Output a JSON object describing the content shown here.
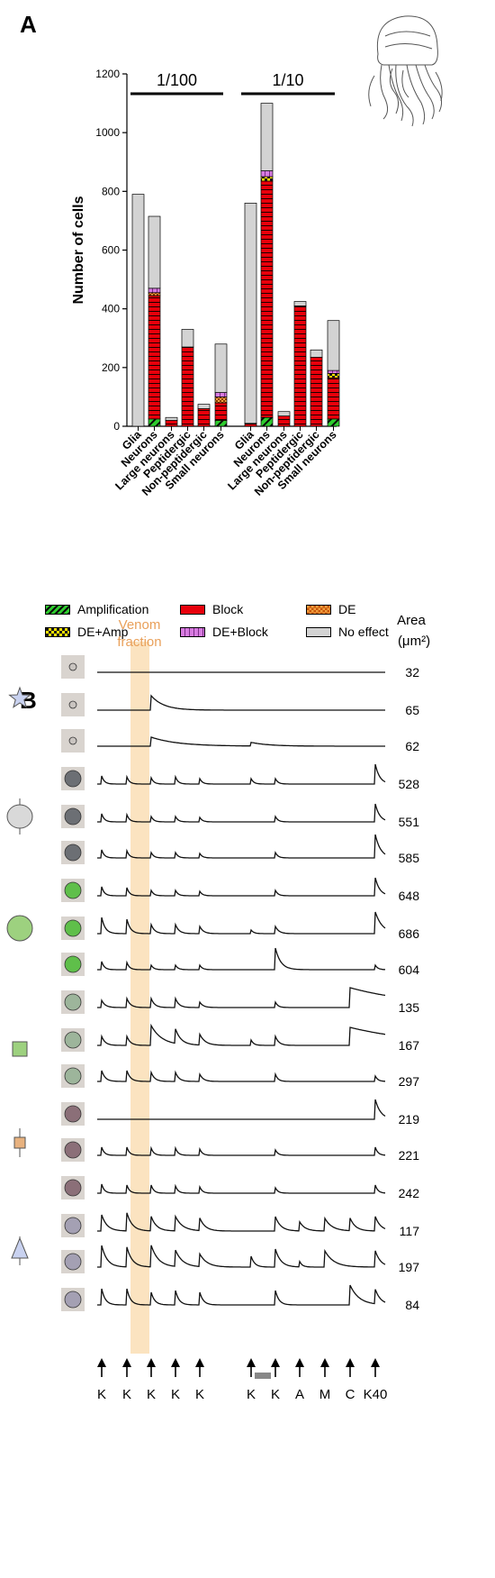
{
  "panel_a": {
    "letter": "A",
    "ylabel": "Number of cells",
    "groups": [
      "1/100",
      "1/10"
    ],
    "legend": [
      "Amplification",
      "Block",
      "DE",
      "DE+Amp",
      "DE+Block",
      "No effect"
    ]
  },
  "panel_b": {
    "letter": "B",
    "venom_label_line1": "Venom",
    "venom_label_line2": "fraction",
    "area_label_line1": "Area",
    "area_label_line2": "(μm²)",
    "areas": [
      "32",
      "65",
      "62",
      "528",
      "551",
      "585",
      "648",
      "686",
      "604",
      "135",
      "167",
      "297",
      "219",
      "221",
      "242",
      "117",
      "197",
      "84"
    ],
    "stimuli": [
      "K",
      "K",
      "K",
      "K",
      "K",
      "K",
      "K",
      "A",
      "M",
      "C",
      "K40"
    ]
  },
  "colors": {
    "amplification": "#2ecc2e",
    "block": "#e8000b",
    "de": "#d2691e",
    "de_amp": "#ffe400",
    "de_block": "#d77be0",
    "no_effect": "#d3d3d3",
    "venom_band": "#fbe3c0",
    "venom_text": "#e9a05a",
    "star": "#c9d2f0",
    "oval": "#d9d9d9",
    "circle": "#9dd17f",
    "square": "#9dd17f",
    "small_square": "#e8b27f",
    "triangle": "#c9d2f0"
  },
  "chart_data": {
    "type": "bar",
    "stacked": true,
    "title": "",
    "xlabel": "",
    "ylabel": "Number of cells",
    "ylim": [
      0,
      1200
    ],
    "yticks": [
      0,
      200,
      400,
      600,
      800,
      1000,
      1200
    ],
    "groups": [
      {
        "name": "1/100",
        "categories": [
          "Glia",
          "Neurons",
          "Large neurons",
          "Peptidergic",
          "Non-peptidergic",
          "Small neurons"
        ],
        "series": [
          {
            "name": "Amplification",
            "values": [
              0,
              25,
              0,
              0,
              0,
              20
            ]
          },
          {
            "name": "Block",
            "values": [
              0,
              420,
              20,
              270,
              60,
              60
            ]
          },
          {
            "name": "DE",
            "values": [
              0,
              10,
              0,
              0,
              0,
              20
            ]
          },
          {
            "name": "DE+Amp",
            "values": [
              0,
              0,
              0,
              0,
              0,
              0
            ]
          },
          {
            "name": "DE+Block",
            "values": [
              0,
              15,
              0,
              0,
              0,
              15
            ]
          },
          {
            "name": "No effect",
            "values": [
              790,
              245,
              10,
              60,
              15,
              165
            ]
          }
        ]
      },
      {
        "name": "1/10",
        "categories": [
          "Glia",
          "Neurons",
          "Large neurons",
          "Peptidergic",
          "Non-peptidergic",
          "Small neurons"
        ],
        "series": [
          {
            "name": "Amplification",
            "values": [
              0,
              30,
              0,
              0,
              0,
              25
            ]
          },
          {
            "name": "Block",
            "values": [
              10,
              805,
              35,
              410,
              235,
              140
            ]
          },
          {
            "name": "DE",
            "values": [
              0,
              0,
              0,
              0,
              0,
              0
            ]
          },
          {
            "name": "DE+Amp",
            "values": [
              0,
              15,
              0,
              0,
              0,
              15
            ]
          },
          {
            "name": "DE+Block",
            "values": [
              0,
              20,
              0,
              0,
              0,
              10
            ]
          },
          {
            "name": "No effect",
            "values": [
              750,
              230,
              15,
              15,
              25,
              170
            ]
          }
        ]
      }
    ]
  }
}
